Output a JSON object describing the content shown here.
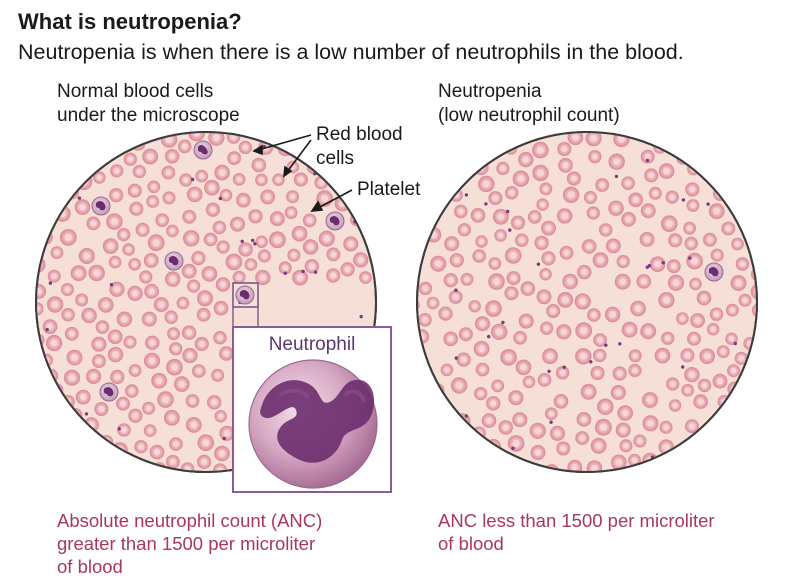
{
  "title": "What is neutropenia?",
  "subtitle": "Neutropenia is when there is a low number of neutrophils in the blood.",
  "left_panel": {
    "label": "Normal blood cells\nunder the microscope",
    "caption": "Absolute neutrophil count (ANC)\ngreater than 1500 per microliter\nof blood"
  },
  "right_panel": {
    "label": "Neutropenia\n(low neutrophil count)",
    "caption": "ANC less than 1500 per microliter\nof blood"
  },
  "annotations": {
    "red_blood_cells": "Red blood\ncells",
    "platelet": "Platelet"
  },
  "inset": {
    "title": "Neutrophil"
  },
  "colors": {
    "caption_text": "#a8385c",
    "field_background": "#f6dfd6",
    "red_cell": "#e6a1a9",
    "neutrophil_nucleus": "#6b2d6e",
    "inset_border": "#8a5a9a"
  }
}
